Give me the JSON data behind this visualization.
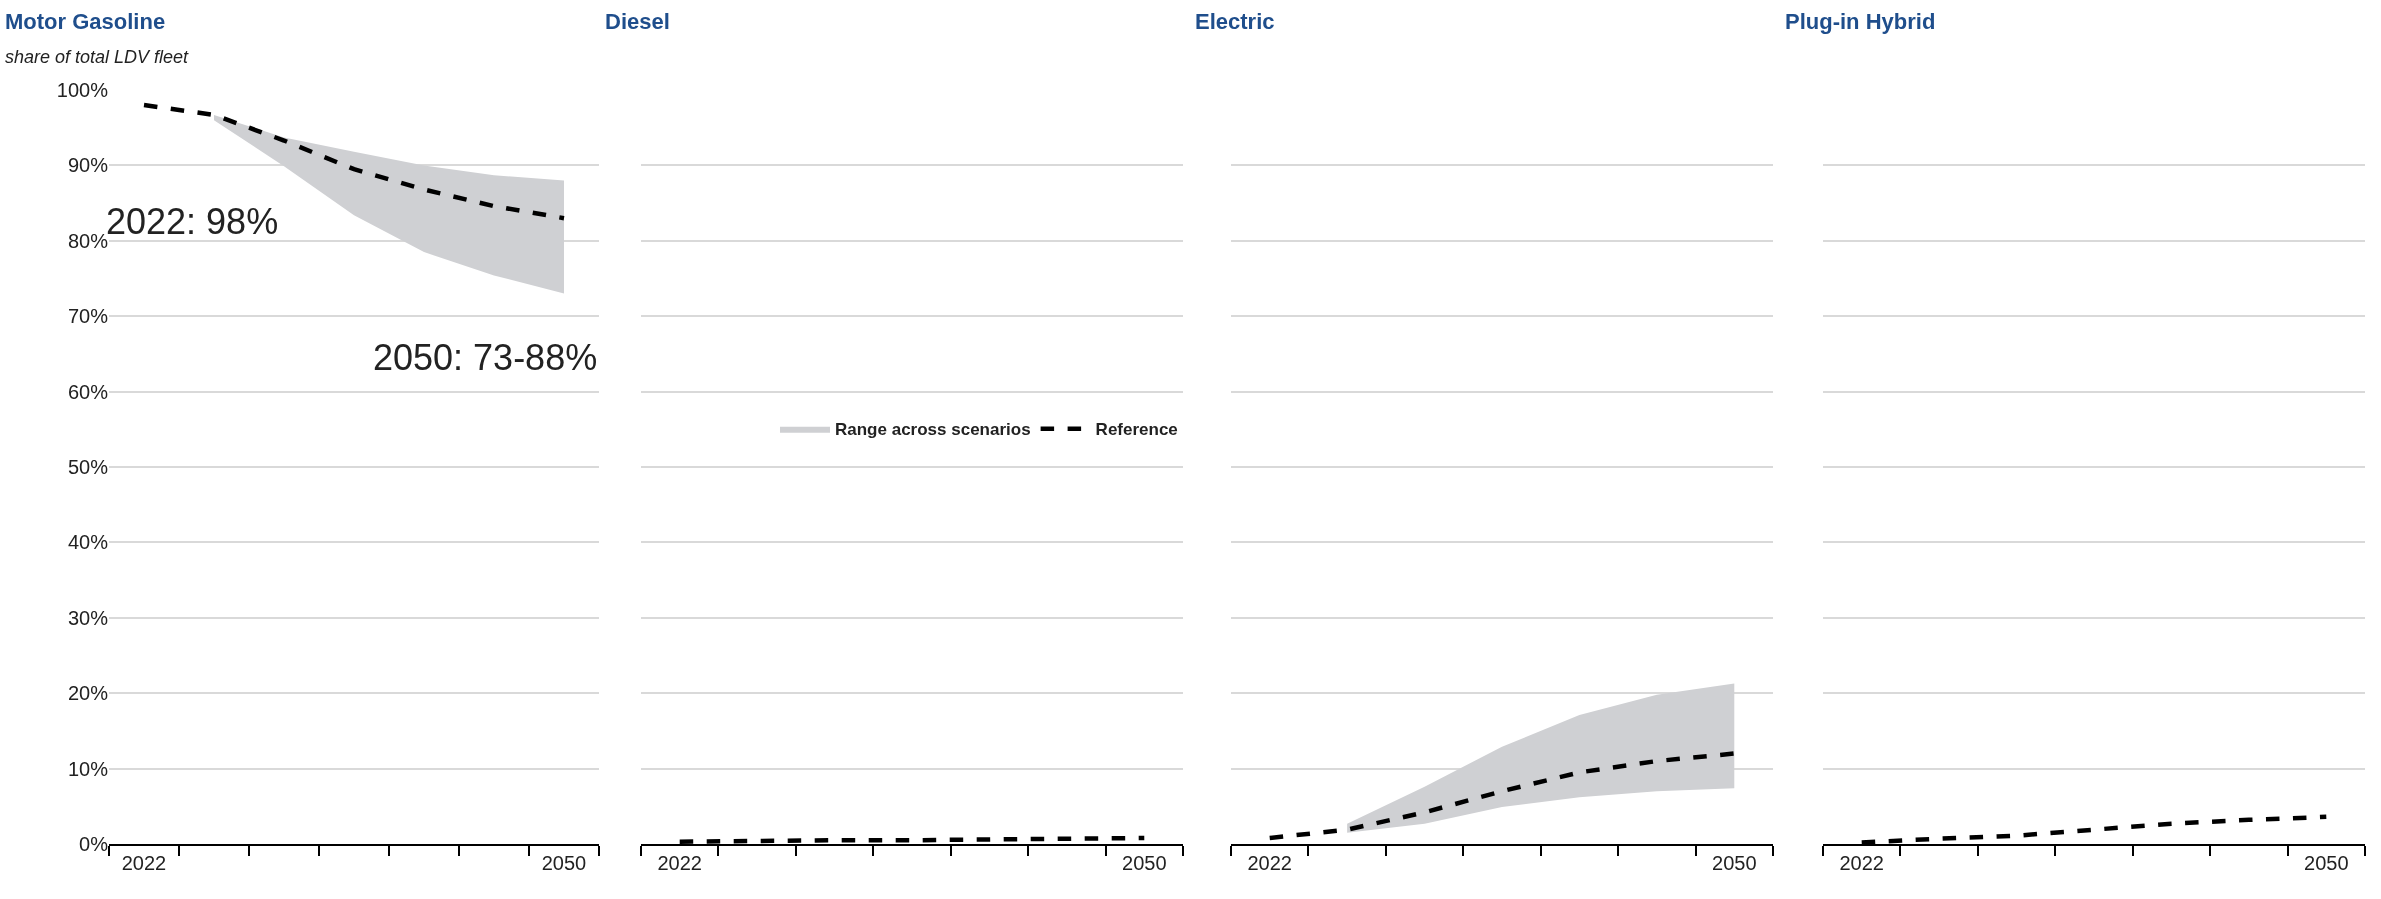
{
  "chart_data": [
    {
      "type": "line",
      "title": "Motor Gasoline",
      "subtitle": "share of total LDV fleet",
      "categories": [
        "2022",
        null,
        null,
        null,
        null,
        null,
        "2050"
      ],
      "series": [
        {
          "type": "line",
          "color": "#000000",
          "line_style": "dashed",
          "values": [
            98,
            96.7,
            93.3,
            89.5,
            86.8,
            84.6,
            83
          ],
          "lower": [
            null,
            96,
            89.9,
            83.4,
            78.5,
            75.4,
            73
          ],
          "upper": [
            null,
            96.7,
            93.7,
            91.8,
            90,
            88.7,
            88
          ]
        }
      ],
      "ylim": [
        0,
        100
      ],
      "yticks": [
        {
          "value": 0,
          "label": "0%"
        },
        {
          "value": 10,
          "label": "10%"
        },
        {
          "value": 20,
          "label": "20%"
        },
        {
          "value": 30,
          "label": "30%"
        },
        {
          "value": 40,
          "label": "40%"
        },
        {
          "value": 50,
          "label": "50%"
        },
        {
          "value": 60,
          "label": "60%"
        },
        {
          "value": 70,
          "label": "70%"
        },
        {
          "value": 80,
          "label": "80%"
        },
        {
          "value": 90,
          "label": "90%"
        },
        {
          "value": 100,
          "label": "100%"
        }
      ],
      "grid": "y",
      "annotations": [
        "2022: 98%",
        "2050: 73-88%"
      ]
    },
    {
      "type": "line",
      "title": "Diesel",
      "categories": [
        "2022",
        null,
        null,
        null,
        null,
        null,
        "2050"
      ],
      "series": [
        {
          "type": "line",
          "name": "Reference",
          "color": "#000000",
          "line_style": "dashed",
          "values": [
            0.3,
            0.4,
            0.5,
            0.5,
            0.6,
            0.7,
            0.8
          ]
        }
      ],
      "ylim": [
        0,
        100
      ],
      "yticks": [
        0,
        10,
        20,
        30,
        40,
        50,
        60,
        70,
        80,
        90,
        100
      ],
      "grid": "y",
      "tick_labels": "x",
      "legend": "right",
      "annotations": [
        "Range across scenarios"
      ]
    },
    {
      "type": "line",
      "title": "Electric",
      "categories": [
        "2022",
        null,
        null,
        null,
        null,
        null,
        "2050"
      ],
      "series": [
        {
          "type": "line",
          "color": "#000000",
          "line_style": "dashed",
          "values": [
            0.8,
            1.9,
            4.2,
            7,
            9.5,
            11,
            12
          ],
          "lower": [
            null,
            1.5,
            2.7,
            4.9,
            6.2,
            7,
            7.4
          ],
          "upper": [
            null,
            2.7,
            7.6,
            12.9,
            17.1,
            19.8,
            21.3
          ]
        }
      ],
      "ylim": [
        0,
        100
      ],
      "yticks": [
        0,
        10,
        20,
        30,
        40,
        50,
        60,
        70,
        80,
        90,
        100
      ],
      "grid": "y",
      "tick_labels": "x"
    },
    {
      "type": "line",
      "title": "Plug-in Hybrid",
      "categories": [
        "2022",
        null,
        null,
        null,
        null,
        null,
        "2050"
      ],
      "series": [
        {
          "type": "line",
          "color": "#000000",
          "line_style": "dashed",
          "values": [
            0.2,
            0.7,
            1.1,
            1.9,
            2.7,
            3.2,
            3.6
          ]
        }
      ],
      "ylim": [
        0,
        100
      ],
      "yticks": [
        0,
        10,
        20,
        30,
        40,
        50,
        60,
        70,
        80,
        90,
        100
      ],
      "grid": "y",
      "tick_labels": "x"
    }
  ]
}
